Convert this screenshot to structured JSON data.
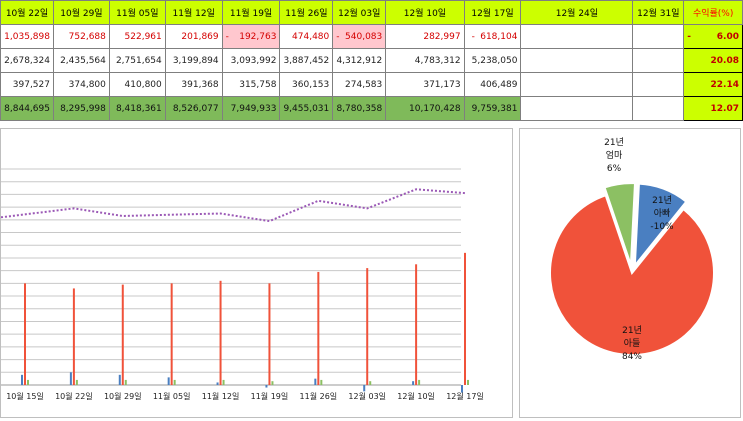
{
  "table": {
    "headers": [
      "10월 22일",
      "10월 29일",
      "11월 05일",
      "11월 12일",
      "11월 19일",
      "11월 26일",
      "12월 03일",
      "12월 10일",
      "12월 17일",
      "12월 24일",
      "12월 31일",
      "수익률(%)"
    ],
    "rows": [
      {
        "cells": [
          "1,035,898",
          "752,688",
          "522,961",
          "201,869",
          "192,763",
          "474,480",
          "540,083",
          "282,997",
          "618,104",
          "",
          "",
          ""
        ],
        "rate": "6.00"
      },
      {
        "cells": [
          "2,678,324",
          "2,435,564",
          "2,751,654",
          "3,199,894",
          "3,093,992",
          "3,887,452",
          "4,312,912",
          "4,783,312",
          "5,238,050",
          "",
          "",
          ""
        ],
        "rate": "20.08"
      },
      {
        "cells": [
          "397,527",
          "374,800",
          "410,800",
          "391,368",
          "315,758",
          "360,153",
          "274,583",
          "371,173",
          "406,489",
          "",
          "",
          ""
        ],
        "rate": "22.14"
      },
      {
        "cells": [
          "8,844,695",
          "8,295,998",
          "8,418,361",
          "8,526,077",
          "7,949,933",
          "9,455,031",
          "8,780,358",
          "10,170,428",
          "9,759,381",
          "",
          "",
          ""
        ],
        "rate": "12.07"
      }
    ],
    "row1_dash": "-"
  },
  "colors": {
    "header_bg": "#ccff00",
    "green_row": "#7fba5a",
    "pink": "#ffc7ce",
    "negative_text": "#d40000",
    "pie_blue": "#4a7fc1",
    "pie_red": "#f0523a",
    "pie_green": "#8cc063",
    "line": "#9b59b6"
  },
  "chart_data": [
    {
      "type": "bar",
      "categories": [
        "10월 15일",
        "10월 22일",
        "10월 29일",
        "11월 05일",
        "11월 12일",
        "11월 19일",
        "11월 26일",
        "12월 03일",
        "12월 10일",
        "12월 17일"
      ],
      "series": [
        {
          "values": [
            8.0,
            7.6,
            7.9,
            8.0,
            8.2,
            8.0,
            8.9,
            9.2,
            9.5,
            10.4
          ],
          "color": "#f0523a"
        },
        {
          "values": [
            0.8,
            1.0,
            0.8,
            0.6,
            0.2,
            -0.2,
            0.5,
            -0.5,
            0.3,
            -0.6
          ],
          "color": "#4a7fc1"
        },
        {
          "values": [
            0.4,
            0.4,
            0.4,
            0.4,
            0.4,
            0.3,
            0.4,
            0.3,
            0.4,
            0.4
          ],
          "color": "#8cc063"
        },
        {
          "values": [
            13.2,
            13.9,
            13.3,
            13.4,
            13.5,
            12.9,
            14.5,
            13.9,
            15.4,
            15.1
          ],
          "color": "#9b59b6",
          "style": "dotted-line"
        }
      ],
      "ylim": [
        0,
        17
      ],
      "grid": true
    },
    {
      "type": "pie",
      "slices": [
        {
          "name": "21년 아빠",
          "percent_label": "-10%",
          "value": 10,
          "color": "#4a7fc1"
        },
        {
          "name": "21년 아들",
          "percent_label": "84%",
          "value": 84,
          "color": "#f0523a"
        },
        {
          "name": "21년 엄마",
          "percent_label": "6%",
          "value": 6,
          "color": "#8cc063"
        }
      ]
    }
  ]
}
